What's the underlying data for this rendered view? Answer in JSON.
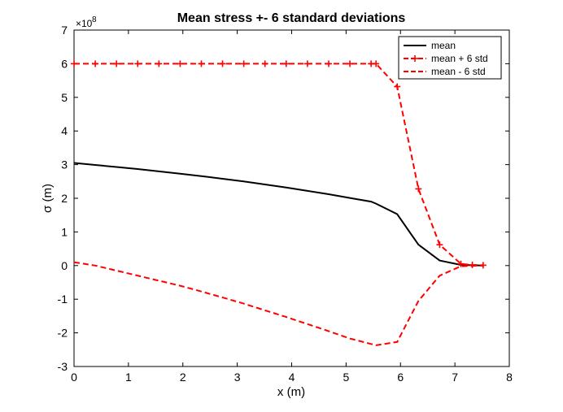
{
  "chart_data": {
    "type": "line",
    "title": "Mean stress +- 6 standard deviations",
    "xlabel": "x (m)",
    "ylabel": "σ (m)",
    "xlim": [
      0,
      8
    ],
    "ylim": [
      -3,
      7
    ],
    "x_ticks": [
      "0",
      "1",
      "2",
      "3",
      "4",
      "5",
      "6",
      "7",
      "8"
    ],
    "y_ticks": [
      "-3",
      "-2",
      "-1",
      "0",
      "1",
      "2",
      "3",
      "4",
      "5",
      "6",
      "7"
    ],
    "y_exponent_base": "×10",
    "y_exponent_power": "8",
    "grid": false,
    "legend_position": "top-right",
    "colors": {
      "mean": "#000000",
      "plus": "#ff0000",
      "minus": "#ff0000"
    },
    "series": [
      {
        "name": "mean",
        "style": "solid",
        "x": [
          0,
          0.39,
          0.78,
          1.17,
          1.56,
          1.95,
          2.34,
          2.73,
          3.12,
          3.51,
          3.9,
          4.29,
          4.68,
          5.07,
          5.46,
          5.55,
          5.94,
          6.33,
          6.72,
          7.11,
          7.32,
          7.52
        ],
        "y": [
          3.05,
          2.99,
          2.93,
          2.87,
          2.8,
          2.73,
          2.66,
          2.58,
          2.5,
          2.41,
          2.32,
          2.22,
          2.12,
          2.01,
          1.9,
          1.84,
          1.53,
          0.62,
          0.15,
          0.02,
          0.01,
          0.0
        ]
      },
      {
        "name": "mean + 6 std",
        "style": "dashed-plus",
        "x": [
          0,
          0.39,
          0.78,
          1.17,
          1.56,
          1.95,
          2.34,
          2.73,
          3.12,
          3.51,
          3.9,
          4.29,
          4.68,
          5.07,
          5.46,
          5.55,
          5.94,
          6.33,
          6.72,
          7.11,
          7.32,
          7.52
        ],
        "y": [
          6.0,
          6.0,
          6.0,
          6.0,
          6.0,
          6.0,
          6.0,
          6.0,
          6.0,
          6.0,
          6.0,
          6.0,
          6.0,
          6.0,
          6.0,
          6.0,
          5.32,
          2.28,
          0.62,
          0.05,
          0.02,
          0.01
        ]
      },
      {
        "name": "mean - 6 std",
        "style": "dashed",
        "x": [
          0,
          0.39,
          0.78,
          1.17,
          1.56,
          1.95,
          2.34,
          2.73,
          3.12,
          3.51,
          3.9,
          4.29,
          4.68,
          5.07,
          5.46,
          5.55,
          5.94,
          6.33,
          6.72,
          7.11,
          7.32,
          7.52
        ],
        "y": [
          0.1,
          0.0,
          -0.15,
          -0.3,
          -0.45,
          -0.6,
          -0.77,
          -0.95,
          -1.13,
          -1.33,
          -1.53,
          -1.74,
          -1.95,
          -2.17,
          -2.33,
          -2.37,
          -2.27,
          -1.05,
          -0.3,
          -0.02,
          -0.01,
          0.0
        ]
      }
    ]
  }
}
